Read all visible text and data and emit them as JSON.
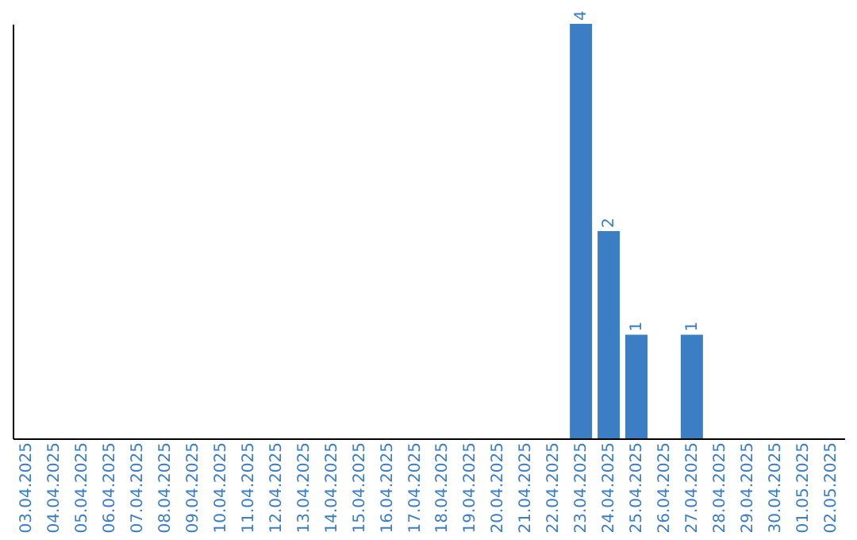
{
  "chart_data": {
    "type": "bar",
    "categories": [
      "03.04.2025",
      "04.04.2025",
      "05.04.2025",
      "06.04.2025",
      "07.04.2025",
      "08.04.2025",
      "09.04.2025",
      "10.04.2025",
      "11.04.2025",
      "12.04.2025",
      "13.04.2025",
      "14.04.2025",
      "15.04.2025",
      "16.04.2025",
      "17.04.2025",
      "18.04.2025",
      "19.04.2025",
      "20.04.2025",
      "21.04.2025",
      "22.04.2025",
      "23.04.2025",
      "24.04.2025",
      "25.04.2025",
      "26.04.2025",
      "27.04.2025",
      "28.04.2025",
      "29.04.2025",
      "30.04.2025",
      "01.05.2025",
      "02.05.2025"
    ],
    "values": [
      null,
      null,
      null,
      null,
      null,
      null,
      null,
      null,
      null,
      null,
      null,
      null,
      null,
      null,
      null,
      null,
      null,
      null,
      null,
      null,
      4,
      2,
      1,
      null,
      1,
      null,
      null,
      null,
      null,
      null
    ],
    "data_labels": true,
    "color": "#3c7ec4",
    "grid": false,
    "tick_labels": "x"
  }
}
